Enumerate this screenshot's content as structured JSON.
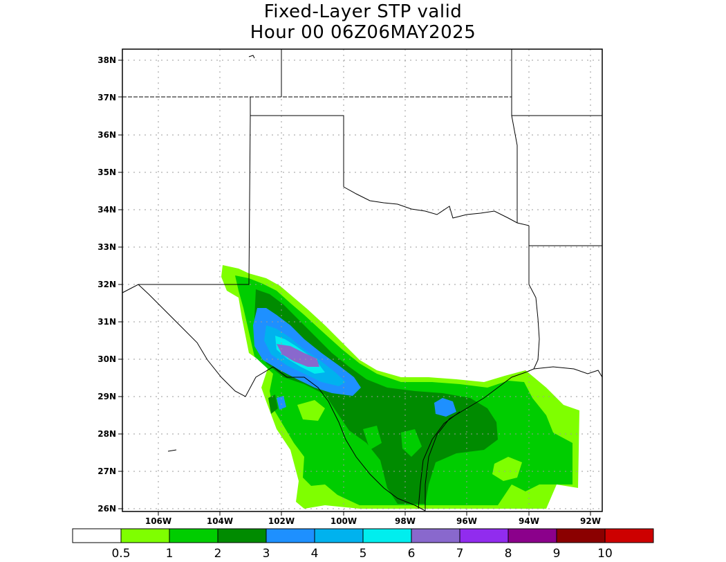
{
  "title": {
    "line1": "Fixed-Layer STP valid",
    "line2": "Hour 00 06Z06MAY2025"
  },
  "axes": {
    "lat_labels": [
      "38N",
      "37N",
      "36N",
      "35N",
      "34N",
      "33N",
      "32N",
      "31N",
      "30N",
      "29N",
      "28N",
      "27N",
      "26N"
    ],
    "lon_labels": [
      "106W",
      "104W",
      "102W",
      "100W",
      "98W",
      "96W",
      "94W",
      "92W"
    ]
  },
  "legend": {
    "labels": [
      "0.5",
      "1",
      "2",
      "3",
      "4",
      "5",
      "6",
      "7",
      "8",
      "9",
      "10"
    ],
    "colors": [
      "#ffffff",
      "#7fff00",
      "#00cd00",
      "#008b00",
      "#1e90ff",
      "#00b2ee",
      "#00eeee",
      "#8968cd",
      "#912cee",
      "#8b008b",
      "#8b0000",
      "#cd0000"
    ]
  },
  "map": {
    "region": "Texas and southern Plains",
    "field": "Fixed-Layer STP",
    "max_area": "west-central Texas near 30N 101W"
  }
}
